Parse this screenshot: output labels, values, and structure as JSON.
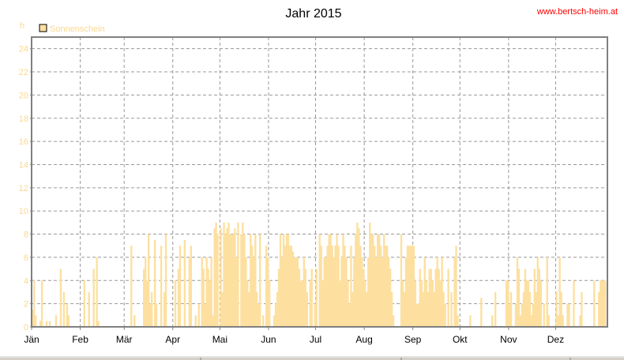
{
  "chart_data": {
    "type": "bar",
    "title": "Jahr 2015",
    "ylabel": "h",
    "ylim": [
      0,
      25
    ],
    "yticks": [
      0,
      2,
      4,
      6,
      8,
      10,
      12,
      14,
      16,
      18,
      20,
      22,
      24
    ],
    "months": [
      "Jän",
      "Feb",
      "Mär",
      "Apr",
      "Mai",
      "Jun",
      "Jul",
      "Aug",
      "Sep",
      "Okt",
      "Nov",
      "Dez"
    ],
    "grid": true,
    "legend_position": "top-left",
    "series": [
      {
        "name": "Sonnenschein",
        "x_unit": "day of year",
        "values": [
          1.5,
          4,
          1,
          0,
          0,
          0.5,
          4,
          0,
          0,
          0.5,
          0,
          0.5,
          0,
          0,
          0,
          1,
          0,
          0,
          5,
          0,
          3,
          0,
          2,
          1,
          0,
          0,
          0,
          0,
          0,
          0,
          0,
          0,
          0,
          4,
          0,
          0,
          3,
          0,
          0,
          5,
          0,
          6,
          0.5,
          0,
          0,
          0,
          0,
          0,
          0,
          0,
          0,
          0,
          0,
          0,
          0,
          0,
          0,
          0,
          0,
          0,
          0,
          0,
          0,
          7,
          0,
          1,
          0,
          0,
          0,
          0,
          0,
          5,
          6,
          4,
          8,
          2,
          3,
          0,
          7.5,
          2,
          0,
          0,
          7,
          0,
          3,
          8,
          0,
          0,
          0,
          0,
          0,
          4,
          0,
          5,
          7,
          0,
          0,
          7.5,
          0,
          0,
          6,
          7,
          0,
          0,
          1,
          0,
          2,
          0,
          6,
          5,
          2,
          6,
          5,
          4,
          6,
          1,
          8.5,
          9,
          8,
          0,
          8.5,
          3,
          9,
          8,
          8.5,
          9,
          8,
          8,
          8,
          8.5,
          6,
          9,
          0,
          8,
          9,
          8,
          6,
          4,
          3,
          8,
          7,
          6,
          8,
          3,
          2,
          8,
          0,
          1,
          0,
          7,
          6,
          4,
          0,
          0,
          1,
          2,
          3,
          5,
          8,
          6,
          8,
          7,
          8,
          8,
          7,
          7,
          6.5,
          6,
          6,
          6,
          5,
          4,
          4,
          6,
          5,
          3,
          0,
          4,
          5,
          0,
          2,
          5,
          0,
          8,
          7,
          4,
          6,
          6,
          7,
          8,
          8,
          7,
          6,
          7,
          8,
          7,
          4,
          6,
          8,
          7,
          6,
          4,
          2,
          7,
          3,
          6,
          8,
          9,
          8.5,
          7,
          6,
          5,
          4,
          3,
          6,
          9,
          8,
          8,
          7,
          6,
          8,
          8,
          7,
          6,
          8,
          7,
          7,
          6,
          5,
          3,
          1,
          0,
          0,
          0,
          0,
          8,
          4,
          3,
          6,
          7,
          7,
          7,
          7,
          7,
          4,
          2,
          2,
          5,
          4,
          3,
          6,
          4,
          3,
          5,
          5,
          4,
          3,
          5,
          6,
          5,
          4,
          6,
          3,
          2,
          0,
          5,
          0,
          3,
          0,
          6,
          7,
          1,
          0,
          0,
          0,
          0,
          0,
          0,
          0,
          1,
          0,
          0,
          0,
          0,
          0,
          0,
          2.5,
          0,
          0,
          0,
          0,
          0,
          0,
          1,
          0,
          3,
          0,
          0,
          0,
          0,
          0,
          0,
          4,
          4,
          2,
          3,
          0,
          0,
          2,
          6,
          5,
          1,
          2,
          3,
          5,
          4,
          4,
          3,
          1,
          2,
          5,
          3,
          6,
          5,
          4,
          0,
          2,
          0,
          6,
          1,
          0,
          0,
          0,
          0,
          3,
          1,
          6,
          3,
          1,
          0,
          0,
          2,
          2,
          0,
          0,
          4,
          0,
          0,
          0,
          1,
          3,
          0,
          0,
          0,
          0,
          0,
          0,
          0,
          4,
          0,
          0,
          3,
          4,
          4,
          4,
          4,
          0
        ]
      }
    ]
  },
  "header": {
    "website": "www.bertsch-heim.at"
  },
  "colors": {
    "bar": "#fde0a0",
    "bar_edge": "#f0c870",
    "axis_label": "#fbd891",
    "site": "#ff0000",
    "grid": "#999999",
    "frame": "#808080"
  }
}
